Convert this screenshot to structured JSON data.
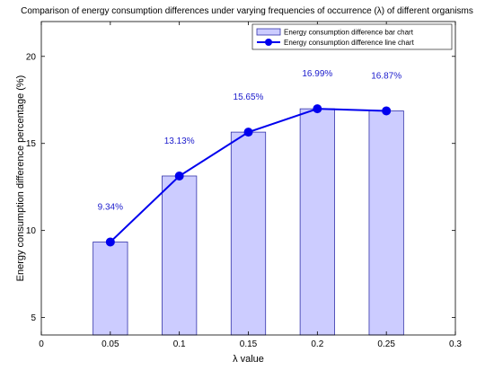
{
  "chart_data": {
    "type": "bar",
    "title": "Comparison of energy consumption differences under varying frequencies of occurrence (λ) of different organisms",
    "xlabel": "λ value",
    "ylabel": "Energy consumption difference percentage (%)",
    "xlim": [
      0,
      0.3
    ],
    "ylim": [
      4,
      22
    ],
    "x_ticks": [
      "0",
      "0.05",
      "0.1",
      "0.15",
      "0.2",
      "0.25",
      "0.3"
    ],
    "y_ticks": [
      "5",
      "10",
      "15",
      "20"
    ],
    "x": [
      0.05,
      0.1,
      0.15,
      0.2,
      0.25
    ],
    "series": [
      {
        "name": "Energy consumption difference bar chart",
        "type": "bar",
        "values": [
          9.34,
          13.13,
          15.65,
          16.99,
          16.87
        ],
        "color": "#ccccff",
        "edge_color": "#3333aa"
      },
      {
        "name": "Energy consumption difference line chart",
        "type": "line",
        "values": [
          9.34,
          13.13,
          15.65,
          16.99,
          16.87
        ],
        "color": "#0000ee"
      }
    ],
    "data_labels": [
      "9.34%",
      "13.13%",
      "15.65%",
      "16.99%",
      "16.87%"
    ],
    "label_color": "#1a1acc",
    "legend_position": "top-right",
    "grid": false
  }
}
